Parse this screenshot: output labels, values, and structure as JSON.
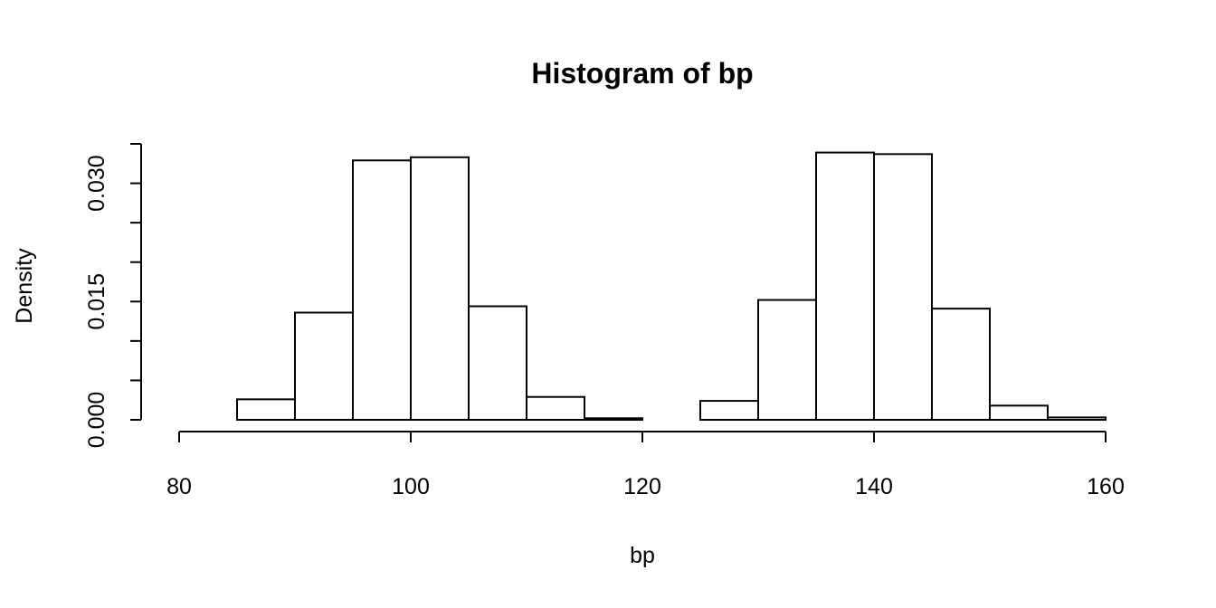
{
  "chart_data": {
    "type": "bar",
    "title": "Histogram of bp",
    "xlabel": "bp",
    "ylabel": "Density",
    "xlim": [
      80,
      160
    ],
    "ylim": [
      0,
      0.035
    ],
    "x_ticks": [
      80,
      100,
      120,
      140,
      160
    ],
    "x_tick_labels": [
      "80",
      "100",
      "120",
      "140",
      "160"
    ],
    "y_ticks": [
      0,
      0.005,
      0.01,
      0.015,
      0.02,
      0.025,
      0.03,
      0.035
    ],
    "y_tick_labels": [
      "0.000",
      "",
      "",
      "0.015",
      "",
      "",
      "0.030",
      ""
    ],
    "bin_width": 5,
    "bins": [
      {
        "start": 80,
        "end": 85,
        "density": 0.0
      },
      {
        "start": 85,
        "end": 90,
        "density": 0.0026
      },
      {
        "start": 90,
        "end": 95,
        "density": 0.0136
      },
      {
        "start": 95,
        "end": 100,
        "density": 0.0329
      },
      {
        "start": 100,
        "end": 105,
        "density": 0.0333
      },
      {
        "start": 105,
        "end": 110,
        "density": 0.0144
      },
      {
        "start": 110,
        "end": 115,
        "density": 0.0029
      },
      {
        "start": 115,
        "end": 120,
        "density": 0.0002
      },
      {
        "start": 120,
        "end": 125,
        "density": 0.0
      },
      {
        "start": 125,
        "end": 130,
        "density": 0.0024
      },
      {
        "start": 130,
        "end": 135,
        "density": 0.0152
      },
      {
        "start": 135,
        "end": 140,
        "density": 0.0339
      },
      {
        "start": 140,
        "end": 145,
        "density": 0.0337
      },
      {
        "start": 145,
        "end": 150,
        "density": 0.0141
      },
      {
        "start": 150,
        "end": 155,
        "density": 0.0018
      },
      {
        "start": 155,
        "end": 160,
        "density": 0.0003
      }
    ]
  }
}
